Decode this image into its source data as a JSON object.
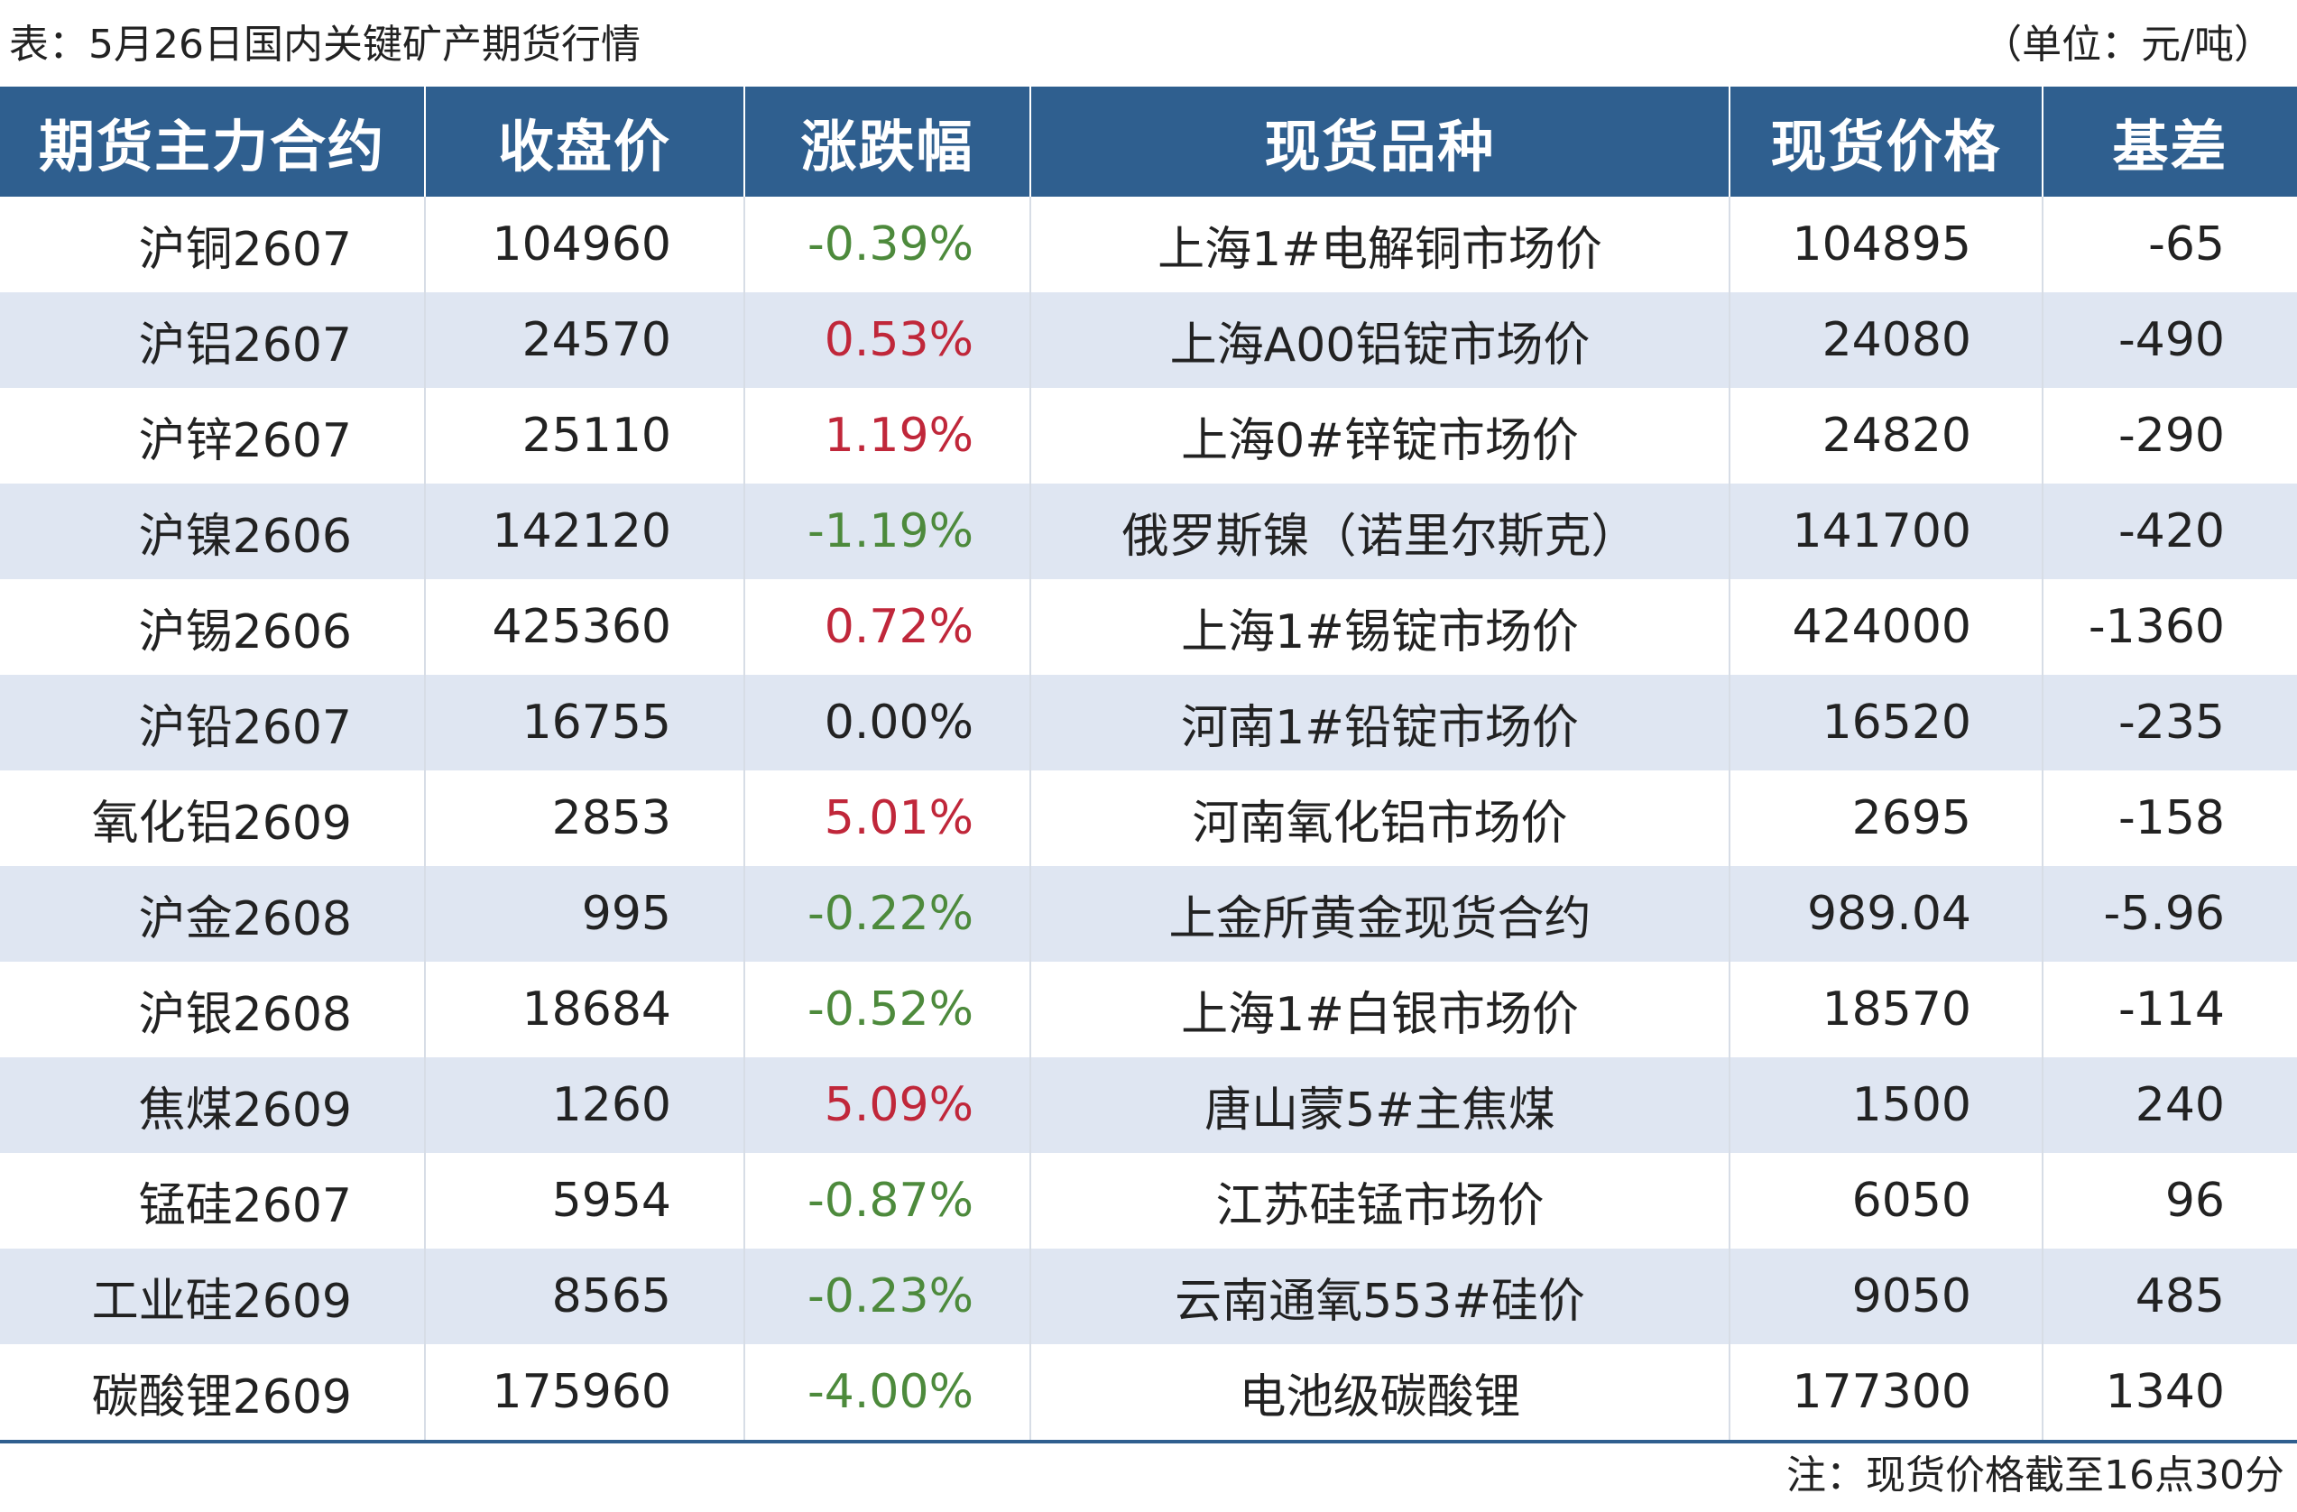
{
  "caption": {
    "title": "表：5月26日国内关键矿产期货行情",
    "unit": "（单位：元/吨）"
  },
  "headers": [
    "期货主力合约",
    "收盘价",
    "涨跌幅",
    "现货品种",
    "现货价格",
    "基差"
  ],
  "rows": [
    {
      "contract": "沪铜2607",
      "close": "104960",
      "change": "-0.39%",
      "direction": "down",
      "spot_name": "上海1#电解铜市场价",
      "spot_price": "104895",
      "basis": "-65"
    },
    {
      "contract": "沪铝2607",
      "close": "24570",
      "change": "0.53%",
      "direction": "up",
      "spot_name": "上海A00铝锭市场价",
      "spot_price": "24080",
      "basis": "-490"
    },
    {
      "contract": "沪锌2607",
      "close": "25110",
      "change": "1.19%",
      "direction": "up",
      "spot_name": "上海0#锌锭市场价",
      "spot_price": "24820",
      "basis": "-290"
    },
    {
      "contract": "沪镍2606",
      "close": "142120",
      "change": "-1.19%",
      "direction": "down",
      "spot_name": "俄罗斯镍（诺里尔斯克）",
      "spot_price": "141700",
      "basis": "-420"
    },
    {
      "contract": "沪锡2606",
      "close": "425360",
      "change": "0.72%",
      "direction": "up",
      "spot_name": "上海1#锡锭市场价",
      "spot_price": "424000",
      "basis": "-1360"
    },
    {
      "contract": "沪铅2607",
      "close": "16755",
      "change": "0.00%",
      "direction": "flat",
      "spot_name": "河南1#铅锭市场价",
      "spot_price": "16520",
      "basis": "-235"
    },
    {
      "contract": "氧化铝2609",
      "close": "2853",
      "change": "5.01%",
      "direction": "up",
      "spot_name": "河南氧化铝市场价",
      "spot_price": "2695",
      "basis": "-158"
    },
    {
      "contract": "沪金2608",
      "close": "995",
      "change": "-0.22%",
      "direction": "down",
      "spot_name": "上金所黄金现货合约",
      "spot_price": "989.04",
      "basis": "-5.96"
    },
    {
      "contract": "沪银2608",
      "close": "18684",
      "change": "-0.52%",
      "direction": "down",
      "spot_name": "上海1#白银市场价",
      "spot_price": "18570",
      "basis": "-114"
    },
    {
      "contract": "焦煤2609",
      "close": "1260",
      "change": "5.09%",
      "direction": "up",
      "spot_name": "唐山蒙5#主焦煤",
      "spot_price": "1500",
      "basis": "240"
    },
    {
      "contract": "锰硅2607",
      "close": "5954",
      "change": "-0.87%",
      "direction": "down",
      "spot_name": "江苏硅锰市场价",
      "spot_price": "6050",
      "basis": "96"
    },
    {
      "contract": "工业硅2609",
      "close": "8565",
      "change": "-0.23%",
      "direction": "down",
      "spot_name": "云南通氧553#硅价",
      "spot_price": "9050",
      "basis": "485"
    },
    {
      "contract": "碳酸锂2609",
      "close": "175960",
      "change": "-4.00%",
      "direction": "down",
      "spot_name": "电池级碳酸锂",
      "spot_price": "177300",
      "basis": "1340"
    }
  ],
  "colors": {
    "header_bg": "#2f5f8f",
    "stripe_bg": "#dfe6f2",
    "up": "#c0273a",
    "down": "#4d8a3c"
  },
  "footnote": "注：现货价格截至16点30分"
}
